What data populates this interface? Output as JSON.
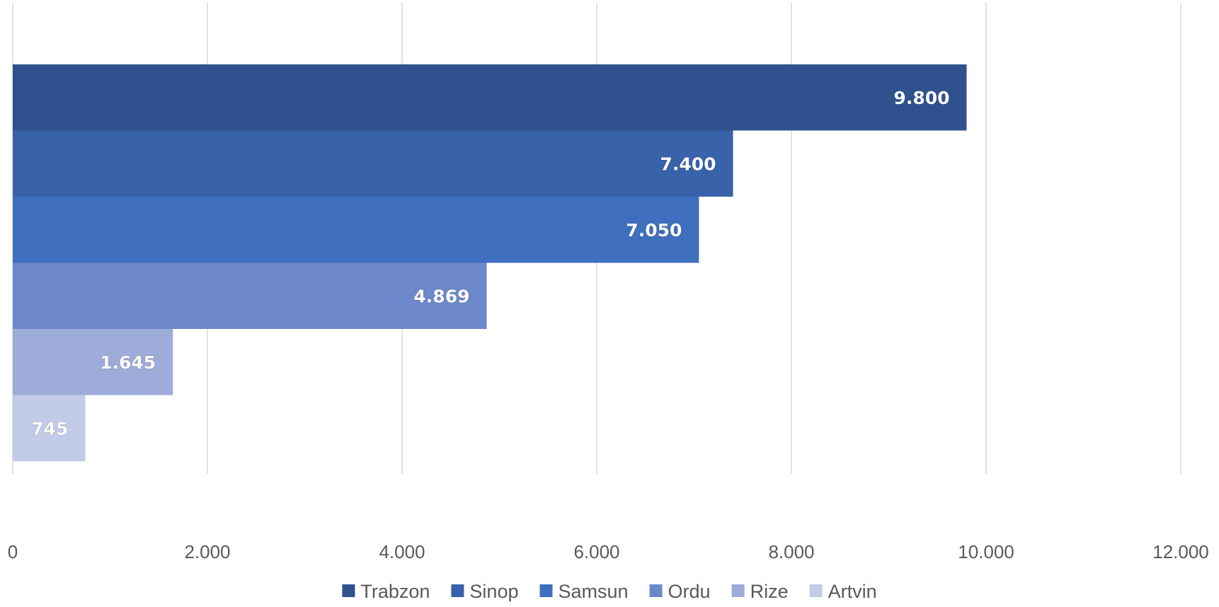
{
  "chart_data": {
    "type": "bar",
    "orientation": "horizontal",
    "title": "",
    "xlabel": "",
    "ylabel": "",
    "xlim": [
      0,
      12000
    ],
    "x_ticks": [
      {
        "value": 0,
        "label": "0"
      },
      {
        "value": 2000,
        "label": "2.000"
      },
      {
        "value": 4000,
        "label": "4.000"
      },
      {
        "value": 6000,
        "label": "6.000"
      },
      {
        "value": 8000,
        "label": "8.000"
      },
      {
        "value": 10000,
        "label": "10.000"
      },
      {
        "value": 12000,
        "label": "12.000"
      }
    ],
    "grid": "vertical",
    "legend_position": "bottom",
    "series": [
      {
        "name": "Trabzon",
        "value": 9800,
        "label": "9.800",
        "color": "#2f528f"
      },
      {
        "name": "Sinop",
        "value": 7400,
        "label": "7.400",
        "color": "#3862a9"
      },
      {
        "name": "Samsun",
        "value": 7050,
        "label": "7.050",
        "color": "#3f6fbe"
      },
      {
        "name": "Ordu",
        "value": 4869,
        "label": "4.869",
        "color": "#6d88ca"
      },
      {
        "name": "Rize",
        "value": 1645,
        "label": "1.645",
        "color": "#9dacd8"
      },
      {
        "name": "Artvin",
        "value": 745,
        "label": "745",
        "color": "#c2cbe7"
      }
    ]
  }
}
